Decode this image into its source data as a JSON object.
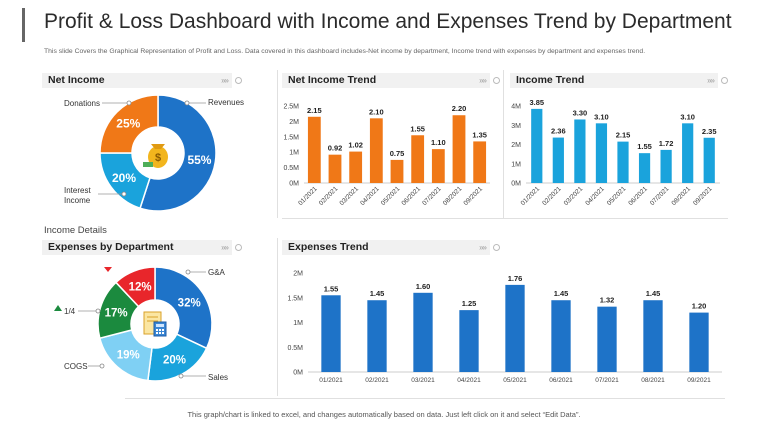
{
  "header": {
    "title": "Profit & Loss Dashboard with Income and Expenses Trend by Department",
    "subtitle": "This slide Covers the Graphical Representation of Profit and Loss. Data covered in this dashboard includes-Net income by department, Income trend with expenses by department and expenses trend."
  },
  "panels": {
    "net_income": "Net Income",
    "net_income_trend": "Net Income Trend",
    "income_trend": "Income Trend",
    "expenses_by_department": "Expenses by Department",
    "expenses_trend": "Expenses Trend",
    "arrows": "»»"
  },
  "section_label": "Income Details",
  "footer": "This graph/chart is linked to excel, and changes automatically based on data. Just left click on it and select “Edit Data”.",
  "colors": {
    "orange": "#f07817",
    "blue": "#1e73c8",
    "cyan": "#1aa3dc",
    "light_blue": "#7fd0f4",
    "red": "#e8262b",
    "green": "#1b8a3e",
    "steel_blue": "#3a86d4"
  },
  "icons": {
    "net_income_center": "money-bag-icon",
    "expenses_center": "calculator-document-icon"
  },
  "chart_data": [
    {
      "id": "net_income",
      "type": "pie",
      "variant": "donut",
      "title": "Net Income",
      "slices": [
        {
          "label": "Revenues",
          "value": 55,
          "display": "55%",
          "color": "#1e73c8"
        },
        {
          "label": "Interest Income",
          "value": 20,
          "display": "20%",
          "color": "#1aa3dc"
        },
        {
          "label": "Donations",
          "value": 25,
          "display": "25%",
          "color": "#f07817"
        }
      ],
      "callouts": {
        "revenues": "Revenues",
        "donations": "Donations",
        "interest_line1": "Interest",
        "interest_line2": "Income"
      }
    },
    {
      "id": "net_income_trend",
      "type": "bar",
      "title": "Net Income Trend",
      "categories": [
        "01/2021",
        "02/2021",
        "03/2021",
        "04/2021",
        "05/2021",
        "06/2021",
        "07/2021",
        "08/2021",
        "09/2021"
      ],
      "values": [
        2.15,
        0.92,
        1.02,
        2.1,
        0.75,
        1.55,
        1.1,
        2.2,
        1.35
      ],
      "labels": [
        "2.15",
        "0.92",
        "1.02",
        "2.10",
        "0.75",
        "1.55",
        "1.10",
        "2.20",
        "1.35"
      ],
      "yticks": [
        "0M",
        "0.5M",
        "1M",
        "1.5M",
        "2M",
        "2.5M"
      ],
      "ylim": [
        0,
        2.5
      ],
      "color": "#f07817"
    },
    {
      "id": "income_trend",
      "type": "bar",
      "title": "Income Trend",
      "categories": [
        "01/2021",
        "02/2021",
        "03/2021",
        "04/2021",
        "05/2021",
        "06/2021",
        "07/2021",
        "08/2021",
        "09/2021"
      ],
      "values": [
        3.85,
        2.36,
        3.3,
        3.1,
        2.15,
        1.55,
        1.72,
        3.1,
        2.35
      ],
      "labels": [
        "3.85",
        "2.36",
        "3.30",
        "3.10",
        "2.15",
        "1.55",
        "1.72",
        "3.10",
        "2.35"
      ],
      "yticks": [
        "0M",
        "1M",
        "2M",
        "3M",
        "4M"
      ],
      "ylim": [
        0,
        4
      ],
      "color": "#1aa3dc"
    },
    {
      "id": "expenses_by_department",
      "type": "pie",
      "variant": "donut",
      "title": "Expenses by Department",
      "slices": [
        {
          "label": "G&A",
          "value": 32,
          "display": "32%",
          "color": "#1e73c8"
        },
        {
          "label": "Sales",
          "value": 20,
          "display": "20%",
          "color": "#1aa3dc"
        },
        {
          "label": "COGS",
          "value": 19,
          "display": "19%",
          "color": "#7fd0f4"
        },
        {
          "label": "1/4",
          "value": 17,
          "display": "17%",
          "color": "#1b8a3e"
        },
        {
          "label": "",
          "value": 12,
          "display": "12%",
          "color": "#e8262b"
        }
      ],
      "callouts": {
        "ga": "G&A",
        "sales": "Sales",
        "cogs": "COGS",
        "quarter": "1/4"
      }
    },
    {
      "id": "expenses_trend",
      "type": "bar",
      "title": "Expenses Trend",
      "categories": [
        "01/2021",
        "02/2021",
        "03/2021",
        "04/2021",
        "05/2021",
        "06/2021",
        "07/2021",
        "08/2021",
        "09/2021"
      ],
      "values": [
        1.55,
        1.45,
        1.6,
        1.25,
        1.76,
        1.45,
        1.32,
        1.45,
        1.2
      ],
      "labels": [
        "1.55",
        "1.45",
        "1.60",
        "1.25",
        "1.76",
        "1.45",
        "1.32",
        "1.45",
        "1.20"
      ],
      "yticks": [
        "0M",
        "0.5M",
        "1M",
        "1.5M",
        "2M"
      ],
      "ylim": [
        0,
        2
      ],
      "color": "#1e73c8"
    }
  ]
}
